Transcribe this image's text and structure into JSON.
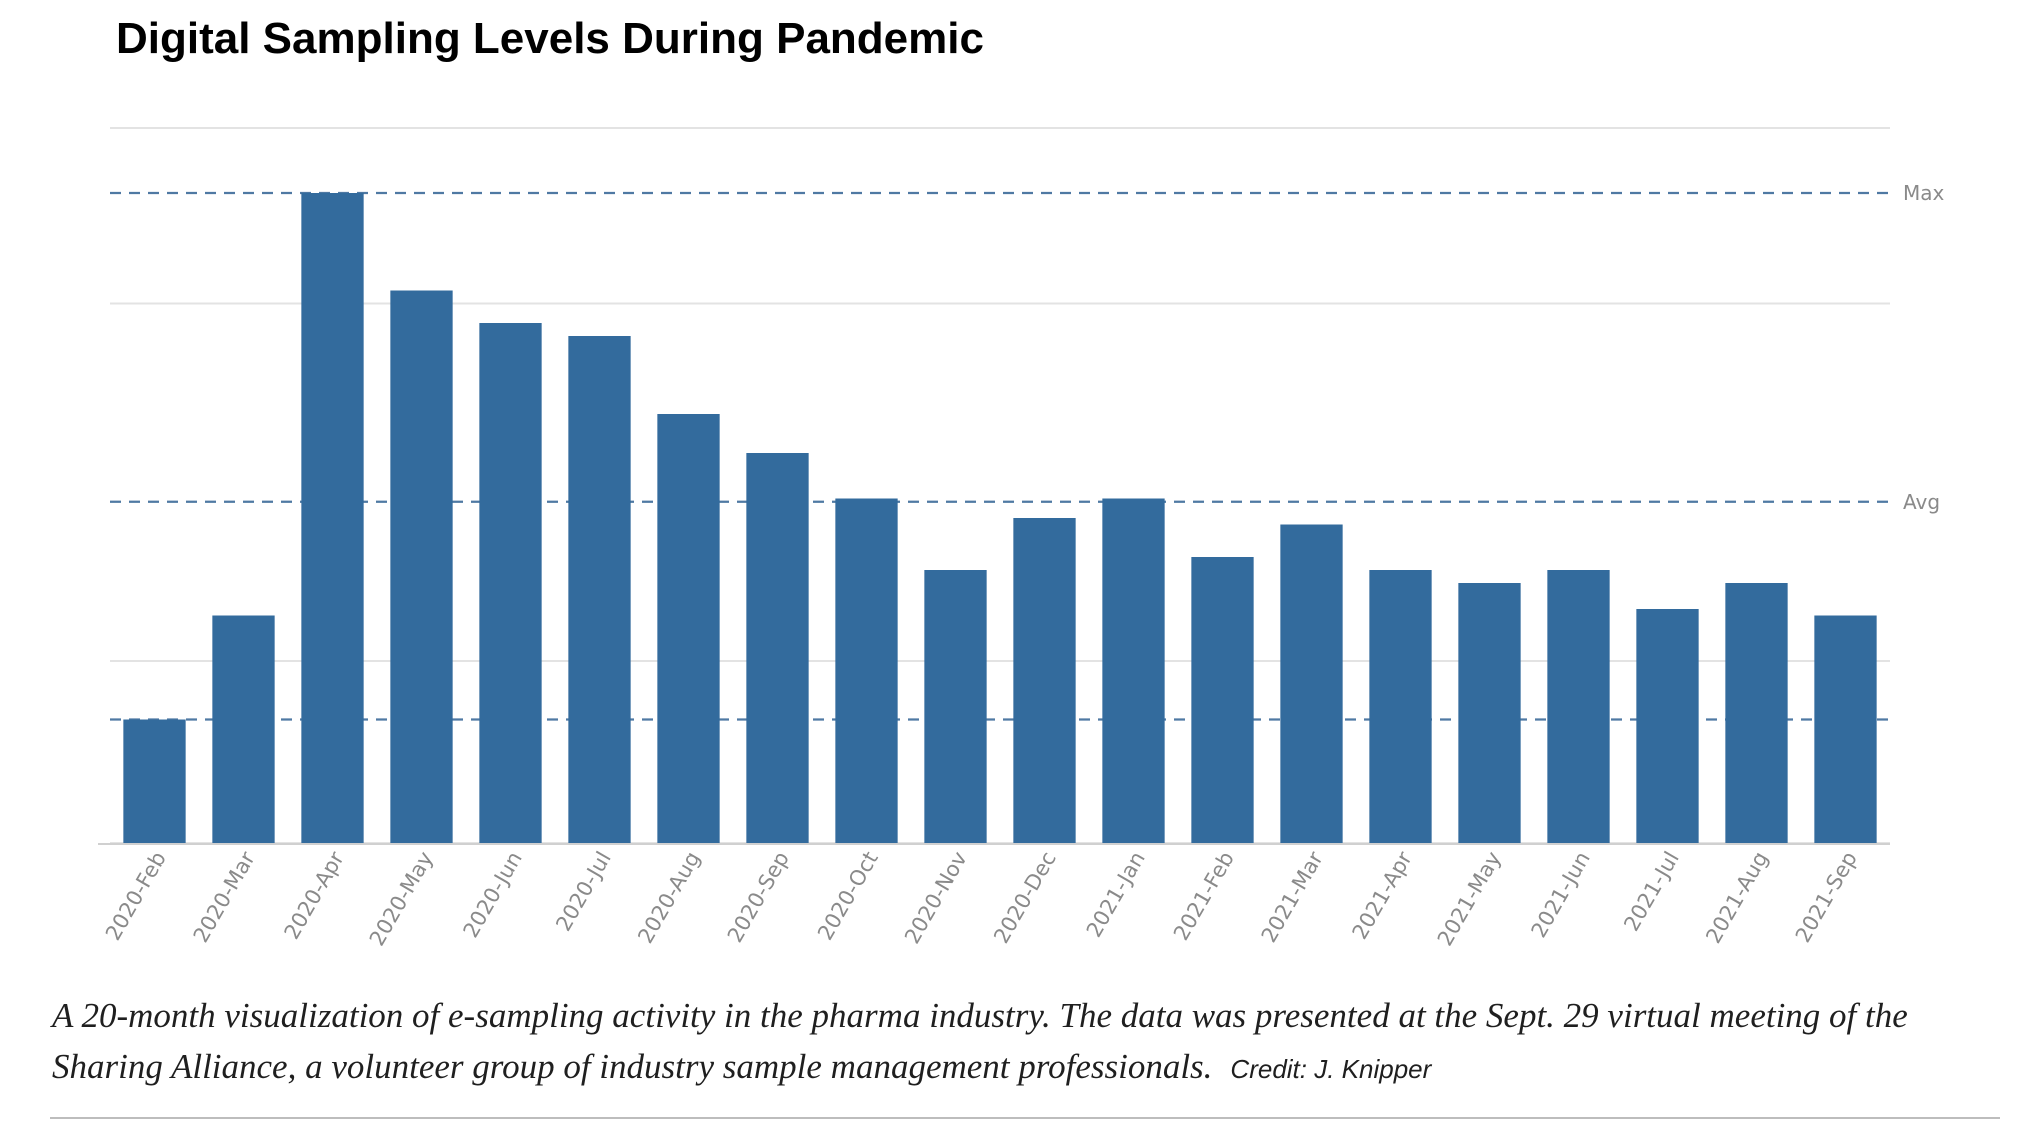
{
  "title": "Digital Sampling Levels During Pandemic",
  "caption": {
    "text": "A 20-month visualization of e-sampling activity in the pharma industry. The data was presented at the Sept. 29 virtual meeting of the Sharing Alliance, a volunteer group of industry sample management professionals.",
    "credit": "Credit: J. Knipper"
  },
  "colors": {
    "bar": "#336b9d",
    "reference_line": "#4f79a3",
    "gridline": "#e3e3e3"
  },
  "chart_data": {
    "type": "bar",
    "title": "Digital Sampling Levels During Pandemic",
    "xlabel": "",
    "ylabel": "",
    "grid": true,
    "ylim": [
      0,
      1.1
    ],
    "categories": [
      "2020-Feb",
      "2020-Mar",
      "2020-Apr",
      "2020-May",
      "2020-Jun",
      "2020-Jul",
      "2020-Aug",
      "2020-Sep",
      "2020-Oct",
      "2020-Nov",
      "2020-Dec",
      "2021-Jan",
      "2021-Feb",
      "2021-Mar",
      "2021-Apr",
      "2021-May",
      "2021-Jun",
      "2021-Jul",
      "2021-Aug",
      "2021-Sep"
    ],
    "values": [
      0.19,
      0.35,
      1.0,
      0.85,
      0.8,
      0.78,
      0.66,
      0.6,
      0.53,
      0.42,
      0.5,
      0.53,
      0.44,
      0.49,
      0.42,
      0.4,
      0.42,
      0.36,
      0.4,
      0.35
    ],
    "reference_lines": [
      {
        "label": "Max",
        "value": 1.0
      },
      {
        "label": "Avg",
        "value": 0.525
      },
      {
        "label": "",
        "value": 0.19
      }
    ]
  }
}
